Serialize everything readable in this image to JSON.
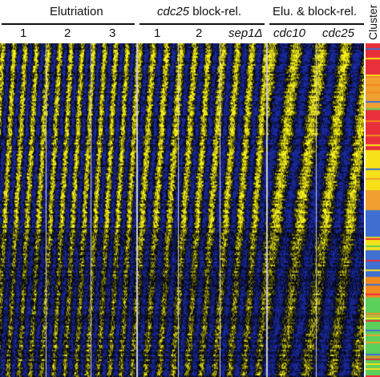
{
  "groups": [
    {
      "title": "Elutriation",
      "title_italic": "",
      "title_rest": "",
      "subs": [
        {
          "label": "1",
          "italic": false
        },
        {
          "label": "2",
          "italic": false
        },
        {
          "label": "3",
          "italic": false
        }
      ]
    },
    {
      "title": "",
      "title_italic": "cdc25",
      "title_rest": " block-rel.",
      "subs": [
        {
          "label": "1",
          "italic": false
        },
        {
          "label": "2",
          "italic": false
        },
        {
          "label": "sep1Δ",
          "italic": true
        }
      ]
    },
    {
      "title": "Elu. & block-rel.",
      "title_italic": "",
      "title_rest": "",
      "subs": [
        {
          "label": "cdc10",
          "italic": true
        },
        {
          "label": "cdc25",
          "italic": true
        }
      ]
    }
  ],
  "cluster_axis_label": "Cluster",
  "colors": {
    "low": "#1a2aa0",
    "mid": "#000000",
    "high": "#f7f21a",
    "divider": "#cfcfcf",
    "cluster_bands": [
      "#e8303a",
      "#f0a030",
      "#f7e21a",
      "#3f6fd0",
      "#f08a20",
      "#5ad05a"
    ]
  }
}
